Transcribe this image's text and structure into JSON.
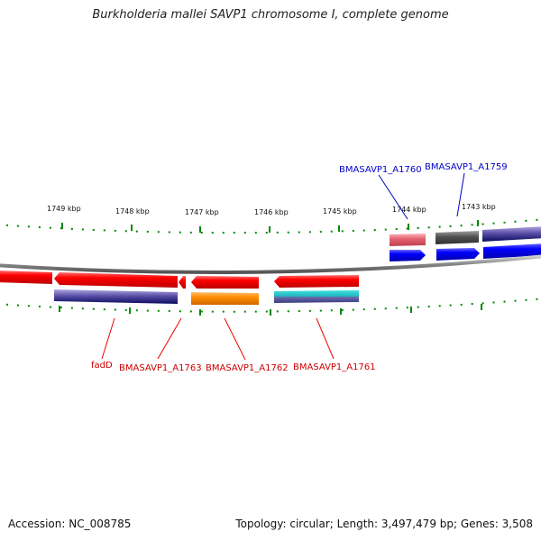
{
  "header": {
    "title": "Burkholderia mallei SAVP1 chromosome I, complete genome"
  },
  "footer": {
    "accession": "Accession: NC_008785",
    "summary": "Topology: circular; Length: 3,497,479 bp; Genes: 3,508"
  },
  "scale": {
    "ticks": [
      "1749 kbp",
      "1748 kbp",
      "1747 kbp",
      "1746 kbp",
      "1745 kbp",
      "1744 kbp",
      "1743 kbp"
    ]
  },
  "genes": {
    "bottom_labels": [
      "fadD",
      "BMASAVP1_A1763",
      "BMASAVP1_A1762",
      "BMASAVP1_A1761"
    ],
    "top_labels": [
      "BMASAVP1_A1760",
      "BMASAVP1_A1759"
    ]
  },
  "colors": {
    "forward_cds": "#0000ee",
    "reverse_cds": "#ee0000",
    "backbone": "#888888",
    "tick": "#008800",
    "label_red": "#cc0000",
    "label_blue": "#0000cc"
  }
}
